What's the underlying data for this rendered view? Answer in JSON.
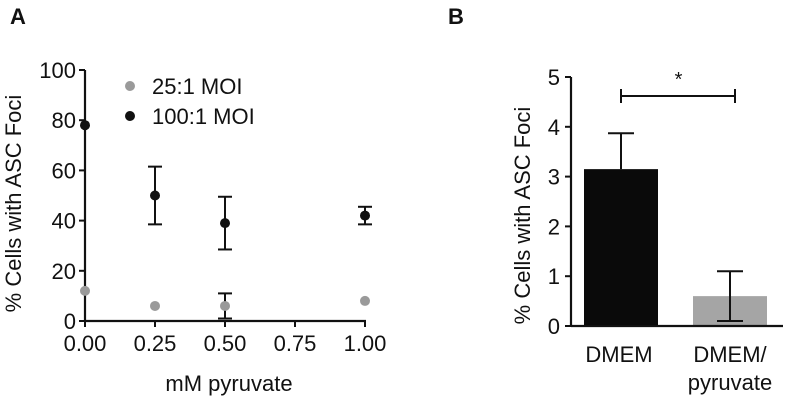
{
  "panels": {
    "a": "A",
    "b": "B"
  },
  "chart_data": [
    {
      "type": "scatter",
      "panel": "A",
      "xlabel": "mM pyruvate",
      "ylabel": "% Cells with ASC Foci",
      "xlim": [
        0,
        1
      ],
      "ylim": [
        0,
        100
      ],
      "x_ticks": [
        "0.00",
        "0.25",
        "0.50",
        "0.75",
        "1.00"
      ],
      "y_ticks": [
        "0",
        "20",
        "40",
        "60",
        "80",
        "100"
      ],
      "legend_position": "top",
      "grid": false,
      "series": [
        {
          "name": "25:1 MOI",
          "color": "#9a9a9a",
          "x": [
            0,
            0.25,
            0.5,
            1.0
          ],
          "y": [
            12,
            6,
            6,
            8
          ],
          "err": [
            0,
            0,
            5,
            0
          ]
        },
        {
          "name": "100:1 MOI",
          "color": "#111111",
          "x": [
            0,
            0.25,
            0.5,
            1.0
          ],
          "y": [
            78,
            50,
            39,
            42
          ],
          "err": [
            0,
            11.5,
            10.5,
            3.5
          ]
        }
      ]
    },
    {
      "type": "bar",
      "panel": "B",
      "ylabel": "% Cells with ASC Foci",
      "ylim": [
        0,
        5
      ],
      "y_ticks": [
        "0",
        "1",
        "2",
        "3",
        "4",
        "5"
      ],
      "categories": [
        "DMEM",
        "DMEM/\npyruvate"
      ],
      "category_lines": [
        [
          "DMEM"
        ],
        [
          "DMEM/",
          "pyruvate"
        ]
      ],
      "values": [
        3.15,
        0.6
      ],
      "errors": [
        0.72,
        0.5
      ],
      "colors": [
        "#0a0a0a",
        "#a5a5a5"
      ],
      "significance": "*",
      "grid": false
    }
  ]
}
